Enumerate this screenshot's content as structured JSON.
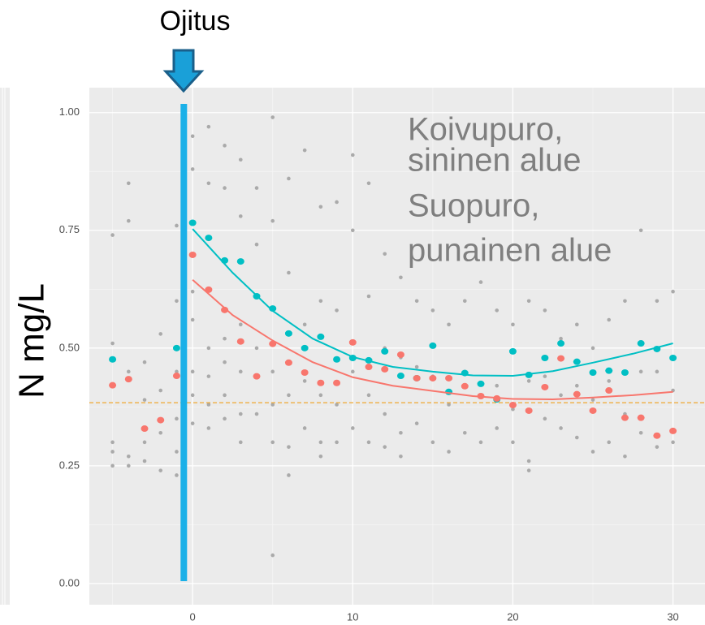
{
  "chart_data": {
    "type": "scatter",
    "y_label": "N mg/L",
    "annotations": [
      "Ojitus",
      "Koivupuro,",
      "sininen alue",
      "Suopuro,",
      "punainen alue"
    ],
    "vline_x": -0.55,
    "hline_y": 0.384,
    "xlim": [
      -6.45,
      32
    ],
    "ylim": [
      -0.045,
      1.053
    ],
    "xticks": [
      0,
      10,
      20,
      30
    ],
    "yticks": [
      {
        "value": 0,
        "label": "0.00"
      },
      {
        "value": 0.25,
        "label": "0.25"
      },
      {
        "value": 0.5,
        "label": "0.50"
      },
      {
        "value": 0.75,
        "label": "0.75"
      },
      {
        "value": 1,
        "label": "1.00"
      }
    ],
    "grid": true,
    "background": {
      "color": "#aaaaaa",
      "x": [
        -5,
        -5,
        -5,
        -5,
        -5,
        -4,
        -4,
        -4,
        -4,
        -4,
        -3,
        -3,
        -3,
        -3,
        -2,
        -2,
        -2,
        -2,
        -1,
        -1,
        -1,
        -1,
        -1,
        -1,
        0,
        0,
        0,
        0,
        0,
        0,
        0,
        1,
        1,
        1,
        1,
        1,
        1,
        2,
        2,
        2,
        2,
        2,
        2,
        3,
        3,
        3,
        3,
        3,
        3,
        4,
        4,
        4,
        4,
        4,
        5,
        5,
        5,
        5,
        5,
        5,
        6,
        6,
        6,
        6,
        6,
        7,
        7,
        7,
        7,
        8,
        8,
        8,
        8,
        8,
        9,
        9,
        9,
        9,
        10,
        10,
        10,
        10,
        11,
        11,
        11,
        11,
        12,
        12,
        12,
        12,
        13,
        13,
        13,
        13,
        14,
        14,
        14,
        15,
        15,
        15,
        16,
        16,
        16,
        17,
        17,
        17,
        18,
        18,
        18,
        19,
        19,
        19,
        20,
        20,
        20,
        21,
        21,
        21,
        21,
        22,
        22,
        22,
        23,
        23,
        23,
        24,
        24,
        24,
        25,
        25,
        25,
        26,
        26,
        26,
        27,
        27,
        27,
        28,
        28,
        28,
        29,
        29,
        29,
        30,
        30,
        30
      ],
      "values": [
        0.74,
        0.51,
        0.3,
        0.28,
        0.25,
        0.85,
        0.77,
        0.45,
        0.27,
        0.25,
        0.47,
        0.39,
        0.3,
        0.26,
        0.53,
        0.41,
        0.32,
        0.24,
        0.76,
        0.6,
        0.45,
        0.35,
        0.28,
        0.23,
        0.95,
        0.88,
        0.62,
        0.56,
        0.45,
        0.4,
        0.34,
        0.97,
        0.85,
        0.5,
        0.44,
        0.38,
        0.33,
        0.93,
        0.84,
        0.52,
        0.47,
        0.4,
        0.35,
        0.9,
        0.78,
        0.55,
        0.45,
        0.36,
        0.3,
        0.84,
        0.72,
        0.5,
        0.44,
        0.36,
        0.99,
        0.77,
        0.45,
        0.38,
        0.3,
        0.06,
        0.86,
        0.66,
        0.4,
        0.23,
        0.29,
        0.92,
        0.55,
        0.43,
        0.33,
        0.8,
        0.6,
        0.4,
        0.3,
        0.27,
        0.81,
        0.58,
        0.38,
        0.3,
        0.91,
        0.75,
        0.45,
        0.33,
        0.85,
        0.61,
        0.4,
        0.3,
        0.7,
        0.5,
        0.36,
        0.29,
        0.65,
        0.48,
        0.32,
        0.27,
        0.6,
        0.46,
        0.34,
        0.58,
        0.44,
        0.3,
        0.55,
        0.38,
        0.28,
        0.6,
        0.45,
        0.32,
        0.64,
        0.4,
        0.3,
        0.58,
        0.42,
        0.33,
        0.55,
        0.37,
        0.3,
        0.6,
        0.43,
        0.26,
        0.24,
        0.58,
        0.44,
        0.35,
        0.52,
        0.4,
        0.33,
        0.55,
        0.42,
        0.31,
        0.5,
        0.39,
        0.28,
        0.56,
        0.43,
        0.3,
        0.6,
        0.36,
        0.27,
        0.75,
        0.45,
        0.32,
        0.6,
        0.45,
        0.29,
        0.62,
        0.41,
        0.3
      ]
    },
    "series": [
      {
        "color": "#00bfc4",
        "x": [
          -5,
          -1,
          0,
          1,
          2,
          3,
          4,
          5,
          6,
          7,
          8,
          9,
          10,
          11,
          12,
          13,
          14,
          15,
          16,
          17,
          18,
          19,
          20,
          21,
          22,
          23,
          24,
          25,
          26,
          27,
          28,
          29,
          30
        ],
        "values": [
          0.476,
          0.5,
          0.766,
          0.734,
          0.686,
          0.684,
          0.61,
          0.584,
          0.531,
          0.5,
          0.524,
          0.476,
          0.479,
          0.474,
          0.493,
          0.441,
          0.436,
          0.505,
          0.407,
          0.447,
          0.424,
          0.391,
          0.493,
          0.443,
          0.479,
          0.51,
          0.471,
          0.448,
          0.452,
          0.448,
          0.51,
          0.498,
          0.479
        ],
        "curve_x": [
          0,
          2.5,
          5,
          7.5,
          10,
          12.5,
          15,
          17.5,
          20,
          22.5,
          25,
          27.5,
          30
        ],
        "curve_values": [
          0.753,
          0.66,
          0.579,
          0.52,
          0.481,
          0.46,
          0.45,
          0.442,
          0.441,
          0.451,
          0.469,
          0.488,
          0.51
        ]
      },
      {
        "color": "#f8766d",
        "x": [
          -5,
          -4,
          -3,
          -2,
          -1,
          0,
          1,
          2,
          3,
          4,
          5,
          6,
          7,
          8,
          9,
          10,
          11,
          12,
          13,
          14,
          15,
          16,
          17,
          18,
          19,
          20,
          21,
          22,
          23,
          24,
          25,
          26,
          27,
          28,
          29,
          30
        ],
        "values": [
          0.421,
          0.434,
          0.329,
          0.347,
          0.441,
          0.698,
          0.624,
          0.581,
          0.514,
          0.44,
          0.509,
          0.469,
          0.448,
          0.426,
          0.426,
          0.512,
          0.46,
          0.455,
          0.486,
          0.436,
          0.436,
          0.436,
          0.419,
          0.398,
          0.393,
          0.379,
          0.367,
          0.417,
          0.478,
          0.402,
          0.367,
          0.41,
          0.352,
          0.352,
          0.314,
          0.324
        ],
        "curve_x": [
          0,
          2.5,
          5,
          7.5,
          10,
          12.5,
          15,
          17.5,
          20,
          22.5,
          25,
          27.5,
          30
        ],
        "curve_values": [
          0.645,
          0.57,
          0.516,
          0.47,
          0.438,
          0.42,
          0.409,
          0.398,
          0.392,
          0.391,
          0.395,
          0.4,
          0.407
        ]
      }
    ]
  }
}
